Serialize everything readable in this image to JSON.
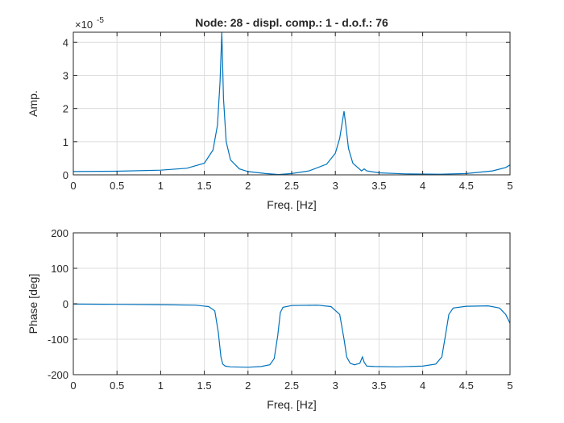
{
  "chart_data": [
    {
      "type": "line",
      "title": "Node: 28 - displ. comp.: 1 - d.o.f.: 76",
      "xlabel": "Freq. [Hz]",
      "ylabel": "Amp.",
      "exponent_label": "×10",
      "exponent_power": "-5",
      "xlim": [
        0,
        5
      ],
      "ylim": [
        0,
        4.3
      ],
      "xticks": [
        "0",
        "0.5",
        "1",
        "1.5",
        "2",
        "2.5",
        "3",
        "3.5",
        "4",
        "4.5",
        "5"
      ],
      "yticks": [
        "0",
        "1",
        "2",
        "3",
        "4"
      ],
      "grid": true,
      "color": "#0072BD",
      "series": [
        {
          "x": [
            0,
            0.5,
            1.0,
            1.3,
            1.5,
            1.6,
            1.65,
            1.68,
            1.7,
            1.72,
            1.75,
            1.8,
            1.9,
            2.0,
            2.2,
            2.35,
            2.5,
            2.7,
            2.9,
            3.0,
            3.05,
            3.08,
            3.1,
            3.12,
            3.15,
            3.2,
            3.3,
            3.33,
            3.36,
            3.5,
            3.8,
            4.2,
            4.5,
            4.8,
            4.95,
            5.0
          ],
          "y": [
            0.1,
            0.11,
            0.14,
            0.2,
            0.35,
            0.75,
            1.5,
            2.8,
            4.3,
            2.3,
            1.0,
            0.45,
            0.18,
            0.1,
            0.04,
            0.01,
            0.04,
            0.12,
            0.32,
            0.65,
            1.1,
            1.6,
            1.92,
            1.5,
            0.8,
            0.35,
            0.12,
            0.18,
            0.12,
            0.06,
            0.03,
            0.02,
            0.04,
            0.12,
            0.22,
            0.3
          ]
        }
      ]
    },
    {
      "type": "line",
      "title": "",
      "xlabel": "Freq. [Hz]",
      "ylabel": "Phase [deg]",
      "xlim": [
        0,
        5
      ],
      "ylim": [
        -200,
        200
      ],
      "xticks": [
        "0",
        "0.5",
        "1",
        "1.5",
        "2",
        "2.5",
        "3",
        "3.5",
        "4",
        "4.5",
        "5"
      ],
      "yticks": [
        "-200",
        "-100",
        "0",
        "100",
        "200"
      ],
      "grid": true,
      "color": "#0072BD",
      "series": [
        {
          "x": [
            0,
            0.5,
            1.0,
            1.4,
            1.55,
            1.62,
            1.66,
            1.69,
            1.71,
            1.74,
            1.8,
            2.0,
            2.15,
            2.25,
            2.3,
            2.34,
            2.37,
            2.4,
            2.5,
            2.8,
            2.95,
            3.05,
            3.1,
            3.13,
            3.17,
            3.22,
            3.28,
            3.31,
            3.33,
            3.36,
            3.45,
            3.7,
            4.0,
            4.15,
            4.22,
            4.26,
            4.3,
            4.35,
            4.5,
            4.75,
            4.88,
            4.95,
            5.0
          ],
          "y": [
            -1,
            -1.5,
            -2.5,
            -4,
            -8,
            -20,
            -80,
            -150,
            -170,
            -176,
            -178,
            -179,
            -177,
            -172,
            -155,
            -90,
            -25,
            -10,
            -5,
            -4,
            -8,
            -30,
            -100,
            -150,
            -168,
            -172,
            -168,
            -150,
            -165,
            -176,
            -177,
            -178,
            -176,
            -170,
            -150,
            -90,
            -30,
            -12,
            -7,
            -6,
            -12,
            -30,
            -55
          ]
        }
      ]
    }
  ]
}
